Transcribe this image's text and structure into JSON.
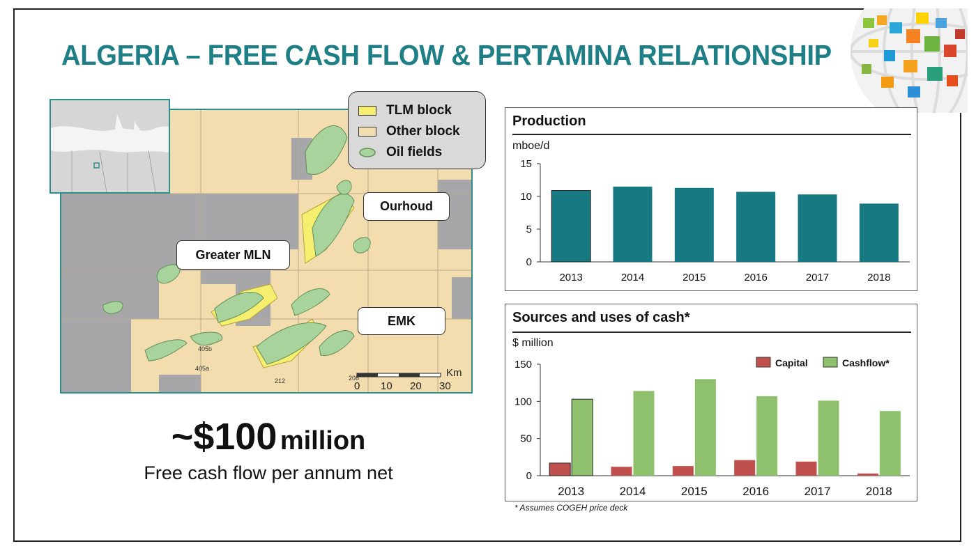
{
  "title": "ALGERIA – FREE CASH FLOW & PERTAMINA RELATIONSHIP",
  "colors": {
    "accent": "#1e7f86",
    "bar_production": "#177a82",
    "capital": "#c0504d",
    "cashflow": "#8fc16c"
  },
  "map": {
    "legend": [
      {
        "label": "TLM block",
        "color": "#f5ee6e"
      },
      {
        "label": "Other block",
        "color": "#f3dcae"
      },
      {
        "label": "Oil fields",
        "color": "#a9d39c"
      }
    ],
    "areas": [
      "Ourhoud",
      "Greater MLN",
      "EMK"
    ],
    "scale": {
      "unit": "Km",
      "ticks": [
        "0",
        "10",
        "20",
        "30"
      ]
    },
    "small_labels": [
      "405b",
      "405a",
      "212",
      "208"
    ]
  },
  "headline": {
    "value": "~$100",
    "unit": "million",
    "caption": "Free cash flow per annum net"
  },
  "production": {
    "title": "Production",
    "unit": "mboe/d",
    "chart_data": {
      "type": "bar",
      "categories": [
        "2013",
        "2014",
        "2015",
        "2016",
        "2017",
        "2018"
      ],
      "values": [
        10.9,
        11.5,
        11.3,
        10.7,
        10.3,
        8.9
      ],
      "yticks": [
        "15",
        "10",
        "5",
        "0"
      ],
      "ylim": [
        0,
        15
      ]
    }
  },
  "cash": {
    "title": "Sources and uses of cash*",
    "unit": "$ million",
    "chart_data": {
      "type": "bar",
      "categories": [
        "2013",
        "2014",
        "2015",
        "2016",
        "2017",
        "2018"
      ],
      "series": [
        {
          "name": "Capital",
          "values": [
            17,
            12,
            13,
            21,
            19,
            3
          ]
        },
        {
          "name": "Cashflow*",
          "values": [
            103,
            114,
            130,
            107,
            101,
            87
          ]
        }
      ],
      "yticks": [
        "150",
        "100",
        "50",
        "0"
      ],
      "ylim": [
        0,
        150
      ]
    }
  },
  "footnote": "*   Assumes COGEH price deck"
}
